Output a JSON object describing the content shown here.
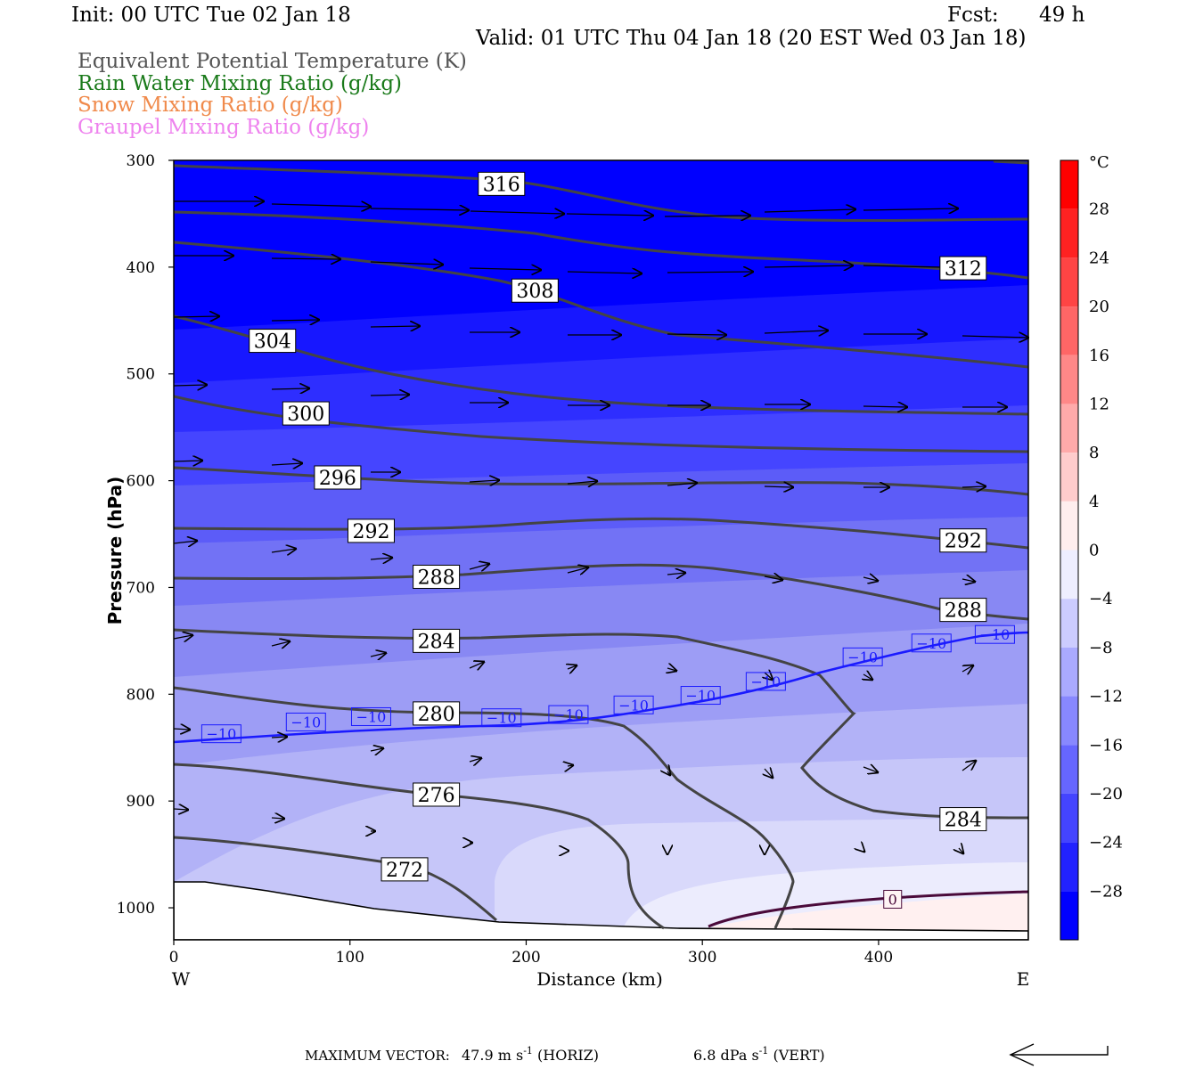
{
  "header": {
    "init": "Init: 00 UTC Tue 02 Jan 18",
    "fcst_label": "Fcst:",
    "fcst_value": "49 h",
    "valid": "Valid: 01 UTC Thu 04 Jan 18 (20 EST Wed 03 Jan 18)"
  },
  "legend": [
    {
      "text": "Equivalent Potential Temperature (K)",
      "color": "#555555"
    },
    {
      "text": "Rain Water Mixing Ratio (g/kg)",
      "color": "#1a7a1a"
    },
    {
      "text": "Snow Mixing Ratio (g/kg)",
      "color": "#f08a4b"
    },
    {
      "text": "Graupel Mixing Ratio (g/kg)",
      "color": "#ee82ee"
    }
  ],
  "footer": {
    "label": "MAXIMUM VECTOR:",
    "horiz_value": "47.9",
    "horiz_unit": "m s",
    "horiz_exp": "-1",
    "horiz_tag": "(HORIZ)",
    "vert_value": "6.8",
    "vert_unit": "dPa s",
    "vert_exp": "-1",
    "vert_tag": "(VERT)"
  },
  "chart_data": {
    "type": "cross-section",
    "xlabel": "Distance (km)",
    "ylabel": "Pressure (hPa)",
    "xlim": [
      0,
      485
    ],
    "ylim": [
      1030,
      300
    ],
    "x_ticks": [
      0,
      100,
      200,
      300,
      400
    ],
    "y_ticks": [
      300,
      400,
      500,
      600,
      700,
      800,
      900,
      1000
    ],
    "x_end_labels": {
      "left": "W",
      "right": "E"
    },
    "colorbar": {
      "unit": "°C",
      "tick_labels": [
        "28",
        "24",
        "20",
        "16",
        "12",
        "8",
        "4",
        "0",
        "−4",
        "−8",
        "−12",
        "−16",
        "−20",
        "−24",
        "−28"
      ],
      "tick_values": [
        28,
        24,
        20,
        16,
        12,
        8,
        4,
        0,
        -4,
        -8,
        -12,
        -16,
        -20,
        -24,
        -28
      ],
      "min": -32,
      "max": 32,
      "cold_color": "#0000ff",
      "warm_color": "#ff0000"
    },
    "theta_e_labels": [
      {
        "label": "316",
        "x": 186,
        "p": 322
      },
      {
        "label": "312",
        "x": 448,
        "p": 401
      },
      {
        "label": "308",
        "x": 205,
        "p": 422
      },
      {
        "label": "304",
        "x": 56,
        "p": 469
      },
      {
        "label": "300",
        "x": 75,
        "p": 537
      },
      {
        "label": "296",
        "x": 93,
        "p": 597
      },
      {
        "label": "292",
        "x": 112,
        "p": 647
      },
      {
        "label": "292",
        "x": 448,
        "p": 656
      },
      {
        "label": "288",
        "x": 149,
        "p": 690
      },
      {
        "label": "288",
        "x": 448,
        "p": 721
      },
      {
        "label": "284",
        "x": 149,
        "p": 750
      },
      {
        "label": "284",
        "x": 448,
        "p": 917
      },
      {
        "label": "280",
        "x": 149,
        "p": 818
      },
      {
        "label": "276",
        "x": 149,
        "p": 894
      },
      {
        "label": "272",
        "x": 131,
        "p": 964
      }
    ],
    "isotherm_labels": [
      {
        "label": "−10",
        "x": 27,
        "p": 837
      },
      {
        "label": "−10",
        "x": 75,
        "p": 826
      },
      {
        "label": "−10",
        "x": 112,
        "p": 821
      },
      {
        "label": "−10",
        "x": 186,
        "p": 822
      },
      {
        "label": "−10",
        "x": 224,
        "p": 819
      },
      {
        "label": "−10",
        "x": 261,
        "p": 810
      },
      {
        "label": "−10",
        "x": 299,
        "p": 801
      },
      {
        "label": "−10",
        "x": 336,
        "p": 788
      },
      {
        "label": "−10",
        "x": 391,
        "p": 765
      },
      {
        "label": "−10",
        "x": 430,
        "p": 752
      },
      {
        "label": "−10",
        "x": 466,
        "p": 744
      },
      {
        "label": "0",
        "x": 408,
        "p": 992
      }
    ]
  }
}
